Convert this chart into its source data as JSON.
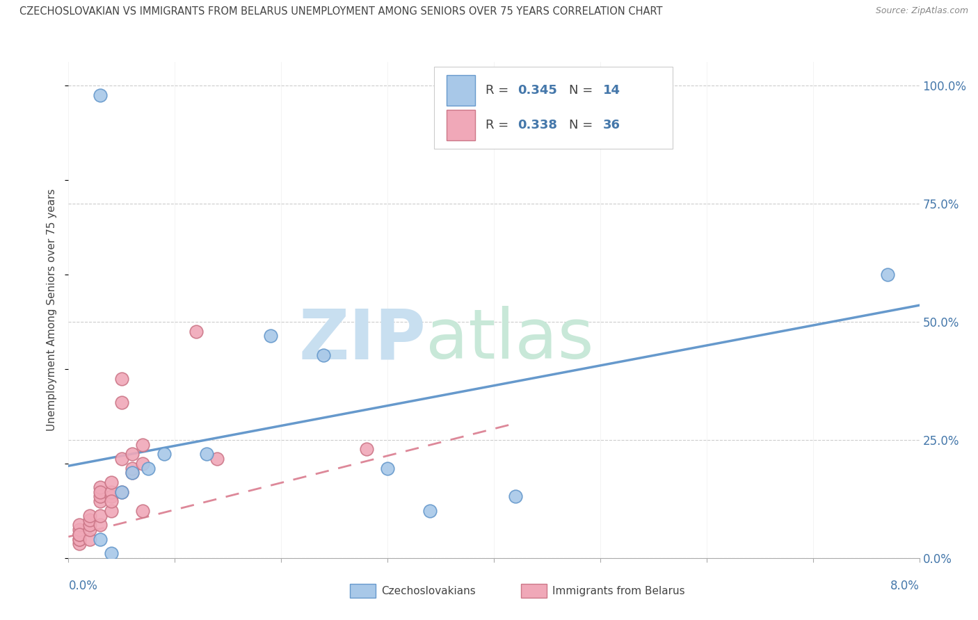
{
  "title": "CZECHOSLOVAKIAN VS IMMIGRANTS FROM BELARUS UNEMPLOYMENT AMONG SENIORS OVER 75 YEARS CORRELATION CHART",
  "source": "Source: ZipAtlas.com",
  "ylabel": "Unemployment Among Seniors over 75 years",
  "ytick_labels": [
    "0.0%",
    "25.0%",
    "50.0%",
    "75.0%",
    "100.0%"
  ],
  "ytick_vals": [
    0.0,
    0.25,
    0.5,
    0.75,
    1.0
  ],
  "legend_R1": "0.345",
  "legend_N1": "14",
  "legend_R2": "0.338",
  "legend_N2": "36",
  "blue_fill": "#a8c8e8",
  "blue_edge": "#6699cc",
  "pink_fill": "#f0a8b8",
  "pink_edge": "#cc7788",
  "blue_line": "#6699cc",
  "pink_line": "#dd8899",
  "xmin": 0.0,
  "xmax": 0.08,
  "ymin": 0.0,
  "ymax": 1.05,
  "scatter_blue_x": [
    0.003,
    0.003,
    0.004,
    0.005,
    0.006,
    0.0075,
    0.009,
    0.013,
    0.019,
    0.024,
    0.03,
    0.034,
    0.042,
    0.077
  ],
  "scatter_blue_y": [
    0.98,
    0.04,
    0.01,
    0.14,
    0.18,
    0.19,
    0.22,
    0.22,
    0.47,
    0.43,
    0.19,
    0.1,
    0.13,
    0.6
  ],
  "scatter_pink_x": [
    0.001,
    0.001,
    0.001,
    0.001,
    0.001,
    0.001,
    0.001,
    0.002,
    0.002,
    0.002,
    0.002,
    0.002,
    0.003,
    0.003,
    0.003,
    0.003,
    0.003,
    0.003,
    0.004,
    0.004,
    0.004,
    0.004,
    0.004,
    0.005,
    0.005,
    0.005,
    0.005,
    0.006,
    0.006,
    0.006,
    0.007,
    0.007,
    0.007,
    0.012,
    0.014,
    0.028
  ],
  "scatter_pink_y": [
    0.03,
    0.04,
    0.04,
    0.05,
    0.06,
    0.07,
    0.05,
    0.04,
    0.06,
    0.07,
    0.08,
    0.09,
    0.07,
    0.09,
    0.12,
    0.13,
    0.15,
    0.14,
    0.1,
    0.13,
    0.14,
    0.12,
    0.16,
    0.14,
    0.21,
    0.33,
    0.38,
    0.18,
    0.19,
    0.22,
    0.2,
    0.24,
    0.1,
    0.48,
    0.21,
    0.23
  ],
  "blue_line_x0": 0.0,
  "blue_line_y0": 0.195,
  "blue_line_x1": 0.08,
  "blue_line_y1": 0.535,
  "pink_line_x0": 0.0,
  "pink_line_y0": 0.045,
  "pink_line_x1": 0.042,
  "pink_line_y1": 0.285,
  "bg_color": "#ffffff",
  "grid_color": "#cccccc",
  "axis_color": "#aaaaaa",
  "watermark_zip_color": "#c8dff0",
  "watermark_atlas_color": "#c8e8d8",
  "label_color": "#4477aa",
  "text_color": "#444444",
  "source_color": "#888888"
}
